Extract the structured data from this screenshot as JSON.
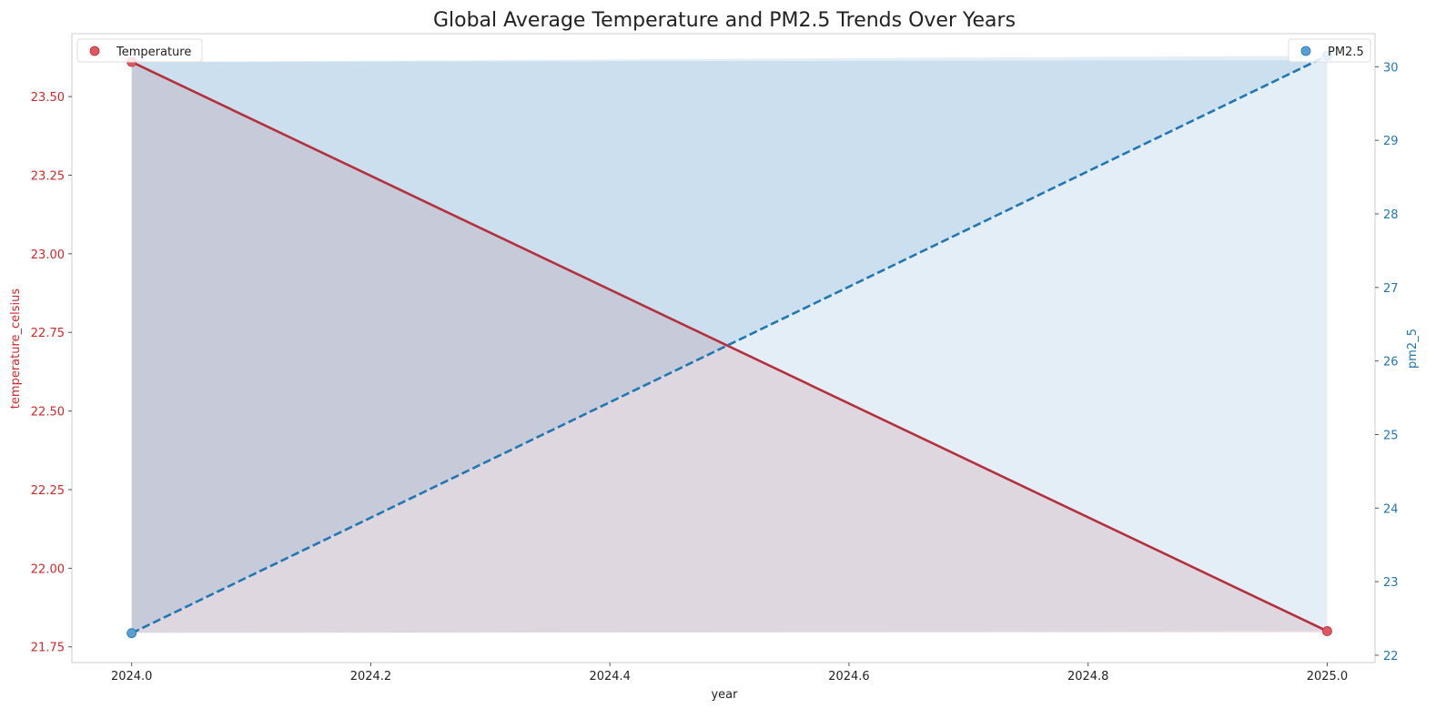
{
  "chart_data": {
    "type": "line",
    "title": "Global Average Temperature and PM2.5 Trends Over Years",
    "xlabel": "year",
    "x": [
      2024.0,
      2025.0
    ],
    "xlim": [
      2023.95,
      2025.04
    ],
    "xticks": [
      2024.0,
      2024.2,
      2024.4,
      2024.6,
      2024.8,
      2025.0
    ],
    "xtick_labels": [
      "2024.0",
      "2024.2",
      "2024.4",
      "2024.6",
      "2024.8",
      "2025.0"
    ],
    "grid": false,
    "series": [
      {
        "name": "Temperature",
        "axis": "left",
        "values": [
          23.61,
          21.8
        ],
        "line_style": "solid",
        "color": "#b5303d",
        "marker_color": "#e0575f"
      },
      {
        "name": "PM2.5",
        "axis": "right",
        "values": [
          22.3,
          30.15
        ],
        "line_style": "dashed",
        "color": "#1f77b4",
        "marker_color": "#5a9fd4"
      }
    ],
    "y_left": {
      "label": "temperature_celsius",
      "color": "#d62728",
      "ylim": [
        21.7,
        23.7
      ],
      "ticks": [
        21.75,
        22.0,
        22.25,
        22.5,
        22.75,
        23.0,
        23.25,
        23.5
      ],
      "tick_labels": [
        "21.75",
        "22.00",
        "22.25",
        "22.50",
        "22.75",
        "23.00",
        "23.25",
        "23.50"
      ]
    },
    "y_right": {
      "label": "pm2_5",
      "color": "#1f77b4",
      "ylim": [
        21.9,
        30.45
      ],
      "ticks": [
        22,
        23,
        24,
        25,
        26,
        27,
        28,
        29,
        30
      ],
      "tick_labels": [
        "22",
        "23",
        "24",
        "25",
        "26",
        "27",
        "28",
        "29",
        "30"
      ]
    },
    "fill": {
      "temperature_color": "#d62728",
      "pm25_color": "#1f77b4"
    },
    "legends": [
      {
        "label": "Temperature",
        "placement": "upper-left",
        "marker_color": "#e0575f"
      },
      {
        "label": "PM2.5",
        "placement": "upper-right",
        "marker_color": "#5a9fd4"
      }
    ]
  }
}
